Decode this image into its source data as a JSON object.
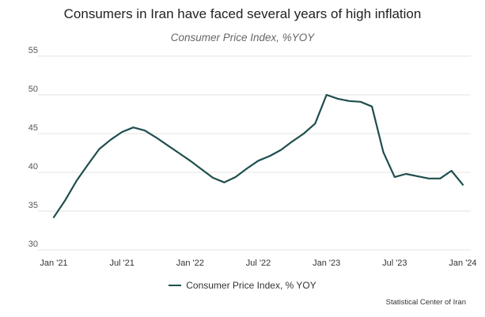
{
  "colors": {
    "series": "#1f4e4e",
    "grid": "#e3e3e3",
    "axis_text": "#555555"
  },
  "source": "Statistical Center of Iran",
  "chart_data": {
    "type": "line",
    "title": "Consumers in Iran have faced several years of high inflation",
    "subtitle": "Consumer Price Index, %YOY",
    "xlabel": "",
    "ylabel": "",
    "ylim": [
      30,
      55
    ],
    "yticks": [
      30,
      35,
      40,
      45,
      50,
      55
    ],
    "xtick_labels": [
      {
        "index": 0,
        "label": "Jan '21"
      },
      {
        "index": 6,
        "label": "Jul '21"
      },
      {
        "index": 12,
        "label": "Jan '22"
      },
      {
        "index": 18,
        "label": "Jul '22"
      },
      {
        "index": 24,
        "label": "Jan '23"
      },
      {
        "index": 30,
        "label": "Jul '23"
      },
      {
        "index": 36,
        "label": "Jan '24"
      }
    ],
    "grid": true,
    "legend_position": "bottom-center",
    "series": [
      {
        "name": "Consumer Price Index, % YOY",
        "months": [
          "2021-01",
          "2021-02",
          "2021-03",
          "2021-04",
          "2021-05",
          "2021-06",
          "2021-07",
          "2021-08",
          "2021-09",
          "2021-10",
          "2021-11",
          "2021-12",
          "2022-01",
          "2022-02",
          "2022-03",
          "2022-04",
          "2022-05",
          "2022-06",
          "2022-07",
          "2022-08",
          "2022-09",
          "2022-10",
          "2022-11",
          "2022-12",
          "2023-01",
          "2023-02",
          "2023-03",
          "2023-04",
          "2023-05",
          "2023-06",
          "2023-07",
          "2023-08",
          "2023-09",
          "2023-10",
          "2023-11",
          "2023-12",
          "2024-01"
        ],
        "values": [
          34.2,
          36.4,
          38.9,
          41.0,
          43.0,
          44.2,
          45.2,
          45.8,
          45.4,
          44.5,
          43.5,
          42.5,
          41.5,
          40.4,
          39.3,
          38.7,
          39.4,
          40.5,
          41.5,
          42.1,
          42.9,
          44.0,
          45.0,
          46.3,
          50.0,
          49.5,
          49.2,
          49.1,
          48.5,
          42.6,
          39.4,
          39.8,
          39.5,
          39.2,
          39.2,
          40.2,
          38.4
        ]
      }
    ]
  }
}
